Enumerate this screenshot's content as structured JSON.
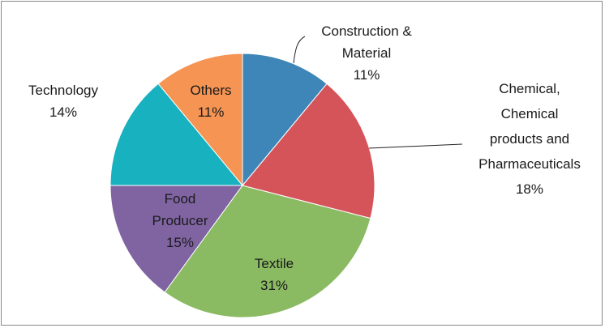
{
  "chart_data": {
    "type": "pie",
    "categories": [
      "Construction &\nMaterial",
      "Chemical,\nChemical\nproducts and\nPharmaceuticals",
      "Textile",
      "Food\nProducer",
      "Technology",
      "Others"
    ],
    "values": [
      11,
      18,
      31,
      15,
      14,
      11
    ],
    "value_labels": [
      "11%",
      "18%",
      "31%",
      "15%",
      "14%",
      "11%"
    ],
    "colors": [
      "#3f86b8",
      "#d4545a",
      "#8aba62",
      "#8064a2",
      "#17b1c0",
      "#f59453"
    ]
  }
}
